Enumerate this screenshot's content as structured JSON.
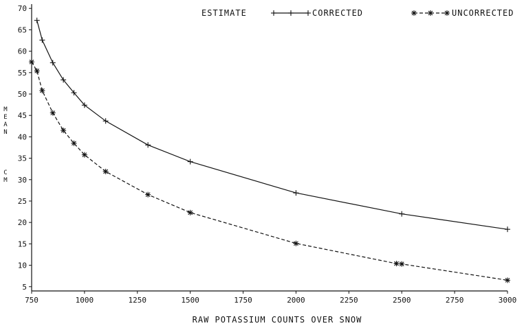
{
  "chart_data": {
    "type": "line",
    "xlabel": "RAW POTASSIUM COUNTS OVER SNOW",
    "ylabel_top": [
      "M",
      "E",
      "A",
      "N"
    ],
    "ylabel_bottom": [
      "C",
      "M"
    ],
    "legend": {
      "title": "ESTIMATE",
      "placement": "top"
    },
    "xlim": [
      750,
      3000
    ],
    "ylim": [
      4,
      71
    ],
    "xticks": [
      750,
      1000,
      1250,
      1500,
      1750,
      2000,
      2250,
      2500,
      2750,
      3000
    ],
    "yticks": [
      5,
      10,
      15,
      20,
      25,
      30,
      35,
      40,
      45,
      50,
      55,
      60,
      65,
      70
    ],
    "grid": false,
    "series": [
      {
        "name": "CORRECTED",
        "style": "solid",
        "marker": "plus",
        "color": "#111111",
        "x": [
          775,
          800,
          850,
          900,
          950,
          1000,
          1100,
          1300,
          1500,
          2000,
          2500,
          3000
        ],
        "y": [
          67.2,
          62.6,
          57.3,
          53.3,
          50.3,
          47.4,
          43.7,
          38.1,
          34.2,
          26.9,
          22.0,
          18.4
        ]
      },
      {
        "name": "UNCORRECTED",
        "style": "dashed",
        "marker": "star",
        "color": "#111111",
        "x": [
          750,
          775,
          800,
          850,
          900,
          950,
          1000,
          1100,
          1300,
          1500,
          2000,
          2475,
          2500,
          3000
        ],
        "y": [
          57.5,
          55.4,
          50.8,
          45.6,
          41.5,
          38.5,
          35.8,
          31.9,
          26.5,
          22.3,
          15.1,
          10.4,
          10.3,
          6.5
        ]
      }
    ]
  }
}
